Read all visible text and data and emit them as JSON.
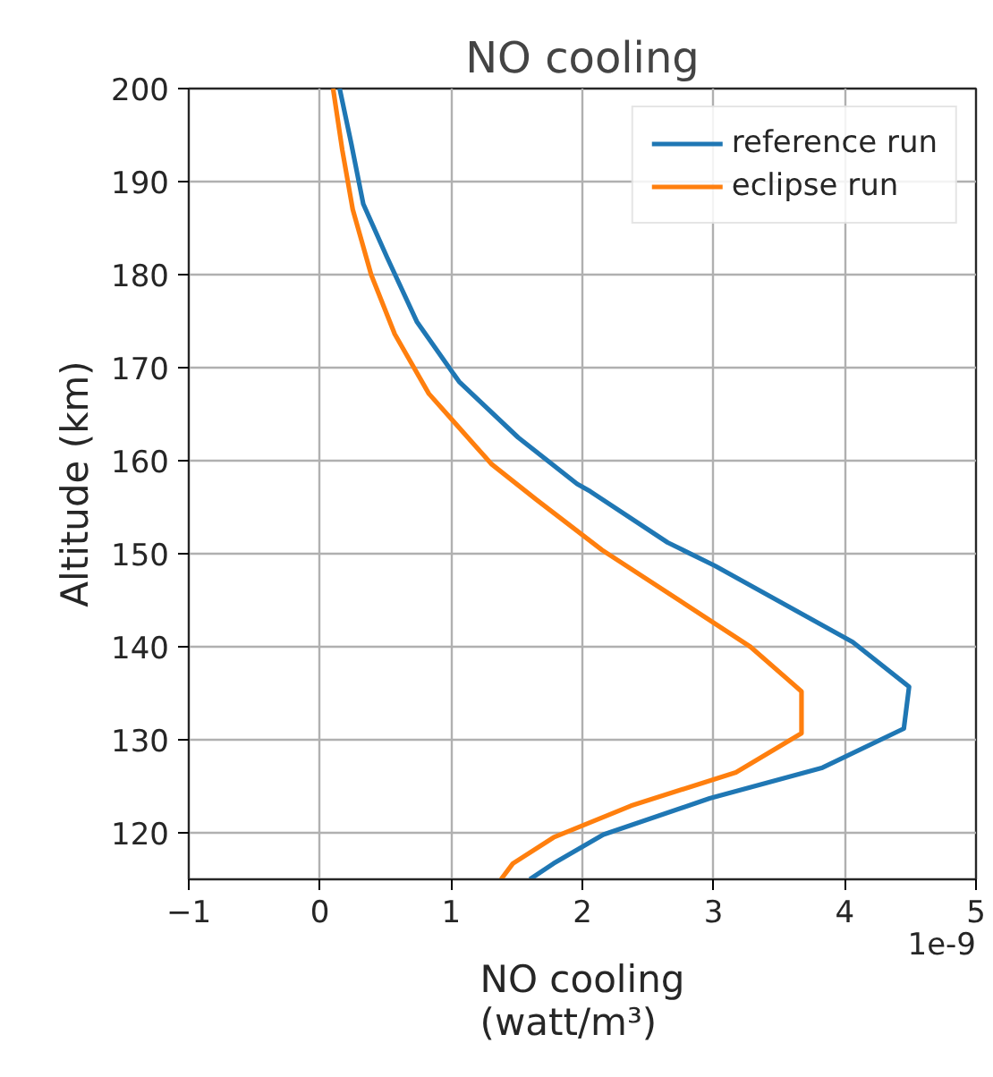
{
  "chart_data": {
    "type": "line",
    "title": "NO cooling",
    "xlabel": "NO cooling\n(watt/m³)",
    "ylabel": "Altitude (km)",
    "annotations": [
      "1e-9"
    ],
    "xlim": [
      -1,
      5
    ],
    "xticks": [
      {
        "value": -1,
        "label": "−1"
      },
      0,
      1,
      2,
      3,
      4,
      5
    ],
    "ylim": [
      115,
      200
    ],
    "yticks": [
      120,
      130,
      140,
      150,
      160,
      170,
      180,
      190,
      200
    ],
    "grid": true,
    "legend": "top right",
    "line_style": "solid",
    "marker": "none",
    "series": [
      {
        "name": "reference run",
        "color": "#1f77b4",
        "x": [
          1.6,
          1.78,
          2.16,
          2.97,
          3.83,
          4.45,
          4.49,
          4.06,
          3.01,
          2.65,
          2.06,
          1.96,
          1.51,
          1.06,
          0.74,
          0.51,
          0.33,
          0.24,
          0.15
        ],
        "values": [
          115,
          116.7,
          119.8,
          123.7,
          127.0,
          131.2,
          135.7,
          140.5,
          148.7,
          151.2,
          156.7,
          157.5,
          162.5,
          168.5,
          174.9,
          181.9,
          187.6,
          194,
          200
        ]
      },
      {
        "name": "eclipse run",
        "color": "#ff7f0e",
        "x": [
          1.38,
          1.47,
          1.78,
          2.37,
          3.17,
          3.67,
          3.67,
          3.28,
          2.15,
          1.65,
          1.31,
          1.19,
          0.83,
          0.57,
          0.39,
          0.25,
          0.17,
          0.1
        ],
        "values": [
          115,
          116.7,
          119.5,
          122.9,
          126.5,
          130.7,
          135.2,
          140,
          150.4,
          155.8,
          159.6,
          161.5,
          167.2,
          173.6,
          180,
          187,
          193.4,
          200
        ]
      }
    ]
  }
}
